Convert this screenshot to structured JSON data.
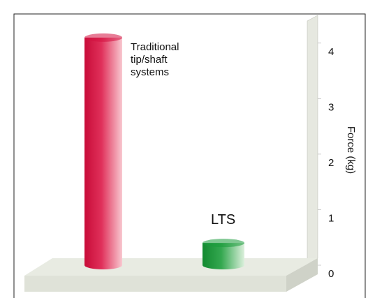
{
  "chart_data": {
    "type": "bar",
    "categories": [
      "Traditional tip/shaft systems",
      "LTS"
    ],
    "values": [
      4.1,
      0.4
    ],
    "colors": [
      "#d41040",
      "#1a9a3a"
    ],
    "ylabel": "Force (kg)",
    "ylim": [
      0,
      4.4
    ],
    "yticks": [
      0,
      1,
      2,
      3,
      4
    ]
  }
}
